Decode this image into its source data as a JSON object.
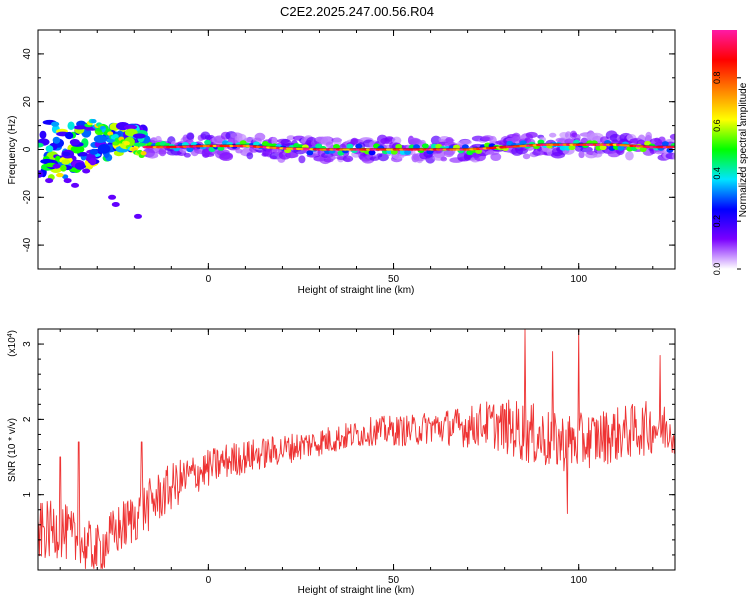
{
  "figure": {
    "title": "C2E2.2025.247.00.56.R04"
  },
  "chart_data": [
    {
      "type": "heatmap",
      "name": "spectrogram",
      "xlabel": "Height of straight line (km)",
      "ylabel": "Frequency (Hz)",
      "xlim": [
        -46,
        126
      ],
      "ylim": [
        -50,
        50
      ],
      "xticks": [
        0,
        50,
        100
      ],
      "yticks": [
        -40,
        -20,
        0,
        20,
        40
      ],
      "ridge": {
        "description": "dominant near-zero-frequency ridge",
        "x": [
          -17,
          -10,
          0,
          10,
          20,
          30,
          40,
          50,
          60,
          70,
          80,
          90,
          100,
          110,
          120,
          126
        ],
        "y": [
          1,
          1,
          1.5,
          1.5,
          0.5,
          0,
          0,
          0,
          0,
          0,
          1,
          2,
          2,
          2,
          1,
          1
        ]
      },
      "scatter_region": {
        "description": "early noisy blobs at heights below -17 km",
        "x_range": [
          -46,
          -17
        ],
        "y_range": [
          -28,
          13
        ]
      }
    },
    {
      "type": "colorbar",
      "name": "amplitude-scale",
      "label": "Normalized spectral amplitude",
      "range": [
        0,
        1
      ],
      "ticks": [
        "0.0",
        "0.2",
        "0.4",
        "0.6",
        "0.8"
      ],
      "tick_values": [
        0,
        0.2,
        0.4,
        0.6,
        0.8
      ],
      "colormap": [
        "#ffffff",
        "#7a00ff",
        "#0000ff",
        "#00e5ff",
        "#00ff00",
        "#ffff00",
        "#ff8000",
        "#ff0000",
        "#ff1aa6"
      ]
    },
    {
      "type": "line",
      "name": "snr",
      "xlabel": "Height of straight line (km)",
      "ylabel": "SNR (10 * v/v)",
      "yexponent_label": "(x10",
      "yexponent": "4",
      "yexponent_close": ")",
      "xlim": [
        -46,
        126
      ],
      "ylim": [
        0,
        3.2
      ],
      "xticks": [
        0,
        50,
        100
      ],
      "yticks": [
        1,
        2,
        3
      ],
      "color": "#ee3333",
      "trend": {
        "x": [
          -46,
          -40,
          -35,
          -30,
          -25,
          -20,
          -15,
          -10,
          -5,
          0,
          5,
          10,
          15,
          20,
          25,
          30,
          35,
          40,
          45,
          50,
          55,
          60,
          65,
          70,
          75,
          80,
          85,
          90,
          95,
          100,
          105,
          110,
          115,
          120,
          126
        ],
        "y": [
          0.5,
          0.55,
          0.35,
          0.25,
          0.5,
          0.7,
          0.9,
          1.1,
          1.25,
          1.35,
          1.45,
          1.5,
          1.55,
          1.6,
          1.65,
          1.7,
          1.75,
          1.8,
          1.85,
          1.85,
          1.85,
          1.9,
          1.9,
          1.9,
          1.95,
          1.9,
          1.85,
          1.75,
          1.7,
          1.7,
          1.75,
          1.8,
          1.85,
          1.9,
          1.9
        ]
      },
      "noise_amp": {
        "x": [
          -46,
          -30,
          -15,
          0,
          20,
          40,
          60,
          75,
          85,
          100,
          126
        ],
        "y": [
          0.4,
          0.35,
          0.35,
          0.25,
          0.2,
          0.18,
          0.22,
          0.3,
          0.42,
          0.38,
          0.35
        ]
      },
      "peaks": [
        {
          "x": -40,
          "y": 1.5
        },
        {
          "x": -35,
          "y": 1.7
        },
        {
          "x": -18,
          "y": 1.7
        },
        {
          "x": 85.5,
          "y": 3.2
        },
        {
          "x": 93,
          "y": 2.9
        },
        {
          "x": 100,
          "y": 3.2
        },
        {
          "x": 122,
          "y": 2.85
        },
        {
          "x": 97,
          "y": 0.75
        }
      ]
    }
  ]
}
